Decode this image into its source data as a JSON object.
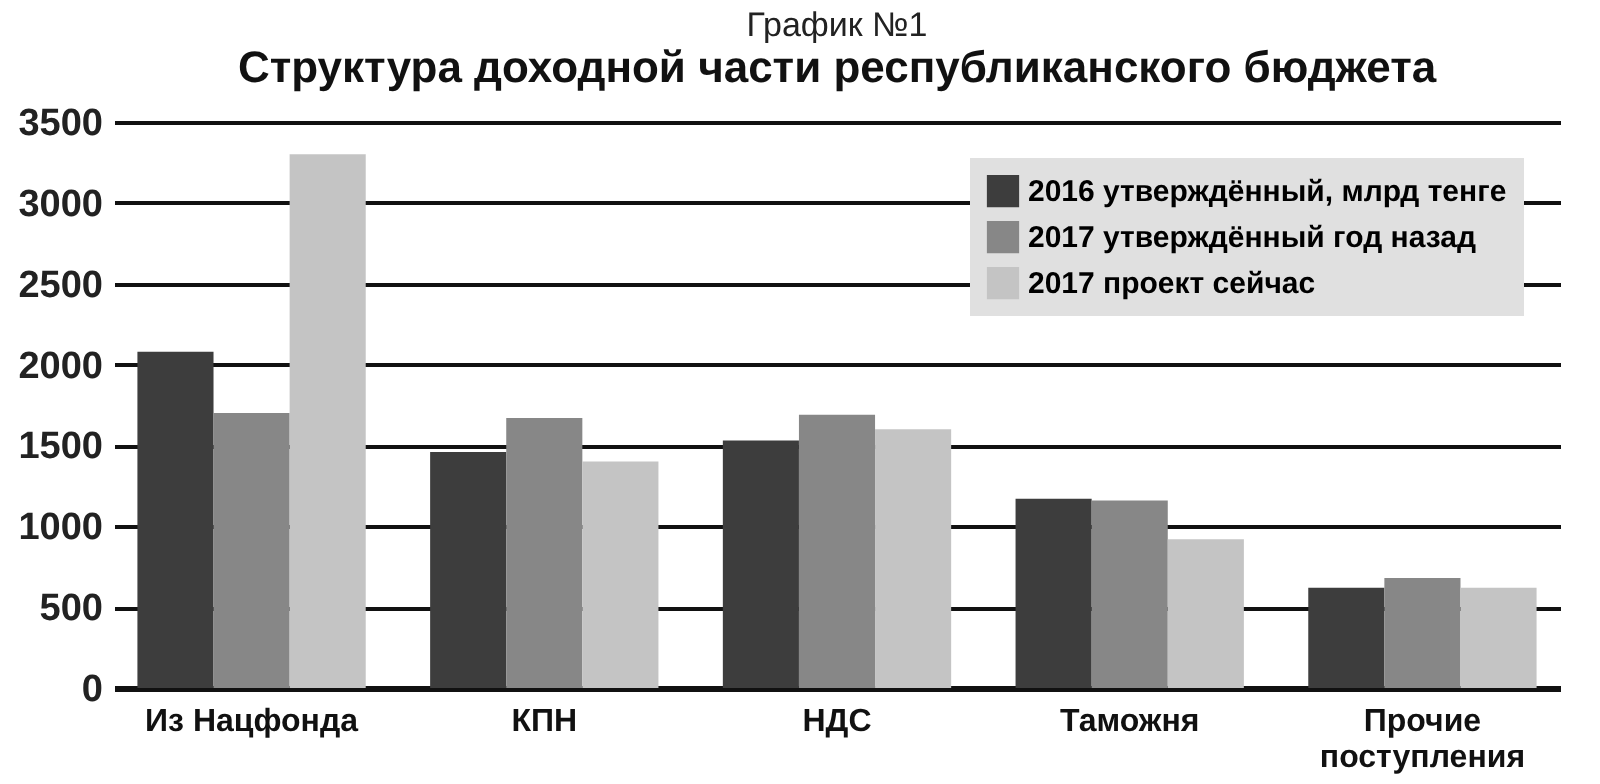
{
  "chart_data": {
    "type": "bar",
    "title": "График №1",
    "subtitle": "Структура доходной части республиканского бюджета",
    "categories": [
      "Из Нацфонда",
      "КПН",
      "НДС",
      "Таможня",
      "Прочие поступления"
    ],
    "series": [
      {
        "name": "2016 утверждённый, млрд тенге",
        "color": "#3d3d3d",
        "values": [
          2080,
          1460,
          1530,
          1170,
          620
        ]
      },
      {
        "name": "2017 утверждённый год назад",
        "color": "#878787",
        "values": [
          1700,
          1670,
          1690,
          1160,
          680
        ]
      },
      {
        "name": "2017 проект сейчас",
        "color": "#c4c4c4",
        "values": [
          3300,
          1400,
          1600,
          920,
          620
        ]
      }
    ],
    "ylim": [
      0,
      3500
    ],
    "yticks": [
      0,
      500,
      1000,
      1500,
      2000,
      2500,
      3000,
      3500
    ],
    "grid": "y",
    "legend": "top right"
  }
}
